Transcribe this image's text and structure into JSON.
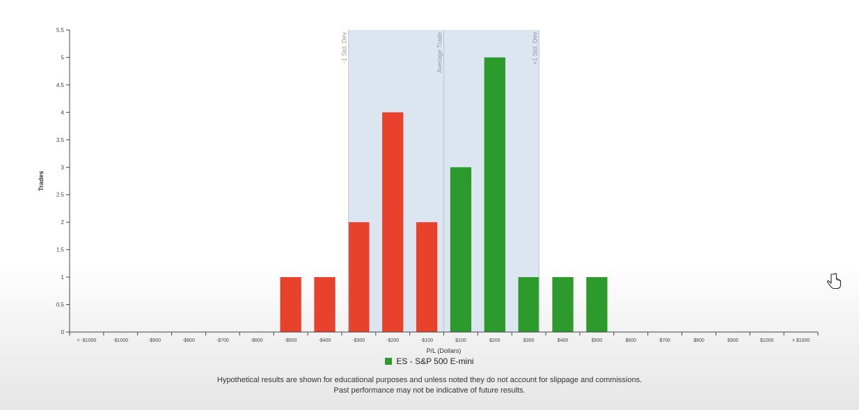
{
  "chart_data": {
    "type": "bar",
    "title": "",
    "xlabel": "P/L (Dollars)",
    "ylabel": "Trades",
    "categories": [
      "< -$1000",
      "-$1000",
      "-$900",
      "-$800",
      "-$700",
      "-$600",
      "-$500",
      "-$400",
      "-$300",
      "-$200",
      "-$100",
      "$100",
      "$200",
      "$300",
      "$400",
      "$500",
      "$600",
      "$700",
      "$800",
      "$900",
      "$1000",
      "> $1000"
    ],
    "values": [
      0,
      0,
      0,
      0,
      0,
      0,
      1,
      1,
      2,
      4,
      2,
      3,
      5,
      1,
      1,
      1,
      0,
      0,
      0,
      0,
      0,
      0
    ],
    "yticks": [
      "0",
      "0.5",
      "1",
      "1.5",
      "2",
      "2.5",
      "3",
      "3.5",
      "4",
      "4.5",
      "5",
      "5.5"
    ],
    "ylim": [
      0,
      5.5
    ],
    "bar_colors": {
      "loss": "#e8412c",
      "gain": "#2d9a2d"
    },
    "band_color": "#dce6f0",
    "reference_lines": [
      {
        "label": "-1 Std. Dev",
        "x": -280
      },
      {
        "label": "Average Trade",
        "x": 0
      },
      {
        "label": "+1 Std. Dev",
        "x": 280
      }
    ],
    "legend": [
      {
        "label": "ES - S&P 500 E-mini",
        "color": "#2d9a2d"
      }
    ],
    "grid": false
  },
  "legend_label": "ES - S&P 500 E-mini",
  "disclaimer": {
    "line1": "Hypothetical results are shown for educational purposes and unless noted they do not account for slippage and commissions.",
    "line2": "Past performance may not be indicative of future results."
  }
}
